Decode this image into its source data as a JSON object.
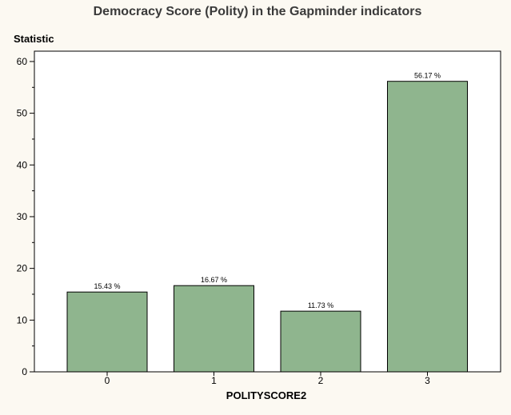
{
  "chart_data": {
    "type": "bar",
    "title": "Democracy Score (Polity) in the Gapminder indicators",
    "ylabel": "Statistic",
    "xlabel": "POLITYSCORE2",
    "categories": [
      "0",
      "1",
      "2",
      "3"
    ],
    "values": [
      15.43,
      16.67,
      11.73,
      56.17
    ],
    "data_labels": [
      "15.43 %",
      "16.67 %",
      "11.73 %",
      "56.17 %"
    ],
    "ylim": [
      0,
      62
    ],
    "yticks": [
      0,
      10,
      20,
      30,
      40,
      50,
      60
    ],
    "ytick_labels": [
      "0",
      "10",
      "20",
      "30",
      "40",
      "50",
      "60"
    ],
    "grid": false,
    "colors": {
      "bar": "#8fb58e",
      "background": "#fcf9f2",
      "plot_background": "#ffffff"
    }
  }
}
